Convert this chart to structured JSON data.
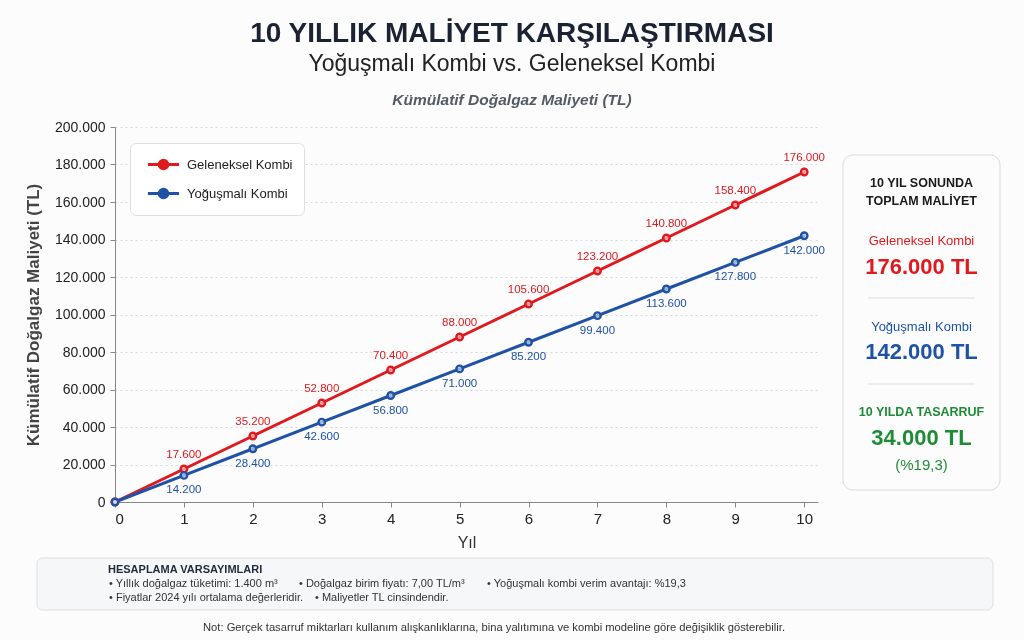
{
  "chart_data": {
    "type": "line",
    "title": "10 YILLIK MALİYET KARŞILAŞTIRMASI",
    "subtitle": "Yoğuşmalı Kombi vs. Geleneksel Kombi",
    "xlabel": "Yıl",
    "ylabel": "Kümülatif Doğalgaz Maliyeti (TL)",
    "x": [
      0,
      1,
      2,
      3,
      4,
      5,
      6,
      7,
      8,
      9,
      10
    ],
    "series": [
      {
        "name": "Geleneksel Kombi",
        "color": "#e0191e",
        "values": [
          0,
          17600,
          35200,
          52800,
          70400,
          88000,
          105600,
          123200,
          140800,
          158400,
          176000
        ],
        "value_labels": [
          null,
          "17.600",
          "35.200",
          "52.800",
          "70.400",
          "88.000",
          "105.600",
          "123.200",
          "140.800",
          "158.400",
          "176.000"
        ]
      },
      {
        "name": "Yoğuşmalı Kombi",
        "color": "#1f52a5",
        "values": [
          0,
          14200,
          28400,
          42600,
          56800,
          71000,
          85200,
          99400,
          113600,
          127800,
          142000
        ],
        "value_labels": [
          null,
          "14.200",
          "28.400",
          "42.600",
          "56.800",
          "71.000",
          "85.200",
          "99.400",
          "113.600",
          "127.800",
          "142.000"
        ]
      }
    ],
    "xlim": [
      0,
      10.2
    ],
    "xticks": [
      0,
      1,
      2,
      3,
      4,
      5,
      6,
      7,
      8,
      9,
      10
    ],
    "ylim": [
      0,
      200000
    ],
    "yticks": [
      0,
      {
        "value": 20000,
        "label": "20.000"
      },
      {
        "value": 40000,
        "label": "40.000"
      },
      {
        "value": 60000,
        "label": "60.000"
      },
      {
        "value": 80000,
        "label": "80.000"
      },
      {
        "value": 100000,
        "label": "100.000"
      },
      {
        "value": 120000,
        "label": "120.000"
      },
      {
        "value": 140000,
        "label": "140.000"
      },
      {
        "value": 160000,
        "label": "160.000"
      },
      {
        "value": 180000,
        "label": "180.000"
      },
      {
        "value": 200000,
        "label": "200.000"
      }
    ],
    "grid": "y",
    "legend": "top left",
    "marker": "circle",
    "line_style": "solid",
    "annotations": [
      "Kümülatif Doğalgaz Maliyeti (TL)",
      "10 YIL SONUNDA",
      "TOPLAM MALİYET",
      "Geleneksel Kombi",
      "176.000 TL",
      "Yoğuşmalı Kombi",
      "142.000 TL",
      "10 YILDA TASARRUF",
      "34.000 TL",
      "(%19,3)",
      "HESAPLAMA VARSAYIMLARI",
      "•  Yıllık doğalgaz tüketimi: 1.400 m³",
      "•  Doğalgaz birim fiyatı: 7,00 TL/m³",
      "•  Yoğuşmalı kombi verim avantajı: %19,3",
      "•  Fiyatlar 2024 yılı ortalama değerleridir.",
      "•  Maliyetler TL cinsindendir.",
      "Not: Gerçek tasarruf miktarları kullanım alışkanlıklarına, bina yalıtımına ve kombi modeline göre değişiklik gösterebilir."
    ]
  }
}
